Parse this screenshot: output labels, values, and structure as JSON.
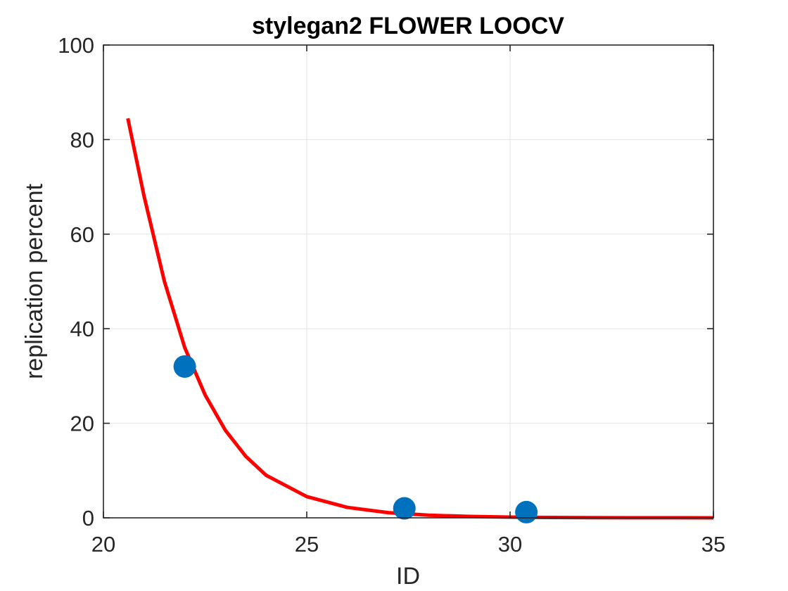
{
  "chart_data": {
    "type": "scatter",
    "title": "stylegan2 FLOWER LOOCV",
    "xlabel": "ID",
    "ylabel": "replication percent",
    "xlim": [
      20,
      35
    ],
    "ylim": [
      0,
      100
    ],
    "xticks": [
      "20",
      "25",
      "30",
      "35"
    ],
    "yticks": [
      "0",
      "20",
      "40",
      "60",
      "80",
      "100"
    ],
    "grid": true,
    "series": [
      {
        "kind": "points",
        "color": "#0072BD",
        "x": [
          22.0,
          27.4,
          30.4
        ],
        "y": [
          32.0,
          2.0,
          1.2
        ]
      },
      {
        "kind": "fit-line",
        "color": "#FF0000",
        "x": [
          20.6,
          21.0,
          21.5,
          22.0,
          22.5,
          23.0,
          23.5,
          24.0,
          25.0,
          26.0,
          27.0,
          28.0,
          29.0,
          30.0,
          31.0,
          32.0,
          33.0,
          34.0,
          35.0
        ],
        "y": [
          84.5,
          68.0,
          50.0,
          36.0,
          26.0,
          18.5,
          13.0,
          9.0,
          4.5,
          2.2,
          1.1,
          0.55,
          0.3,
          0.15,
          0.08,
          0.04,
          0.02,
          0.01,
          0.0
        ]
      }
    ]
  }
}
